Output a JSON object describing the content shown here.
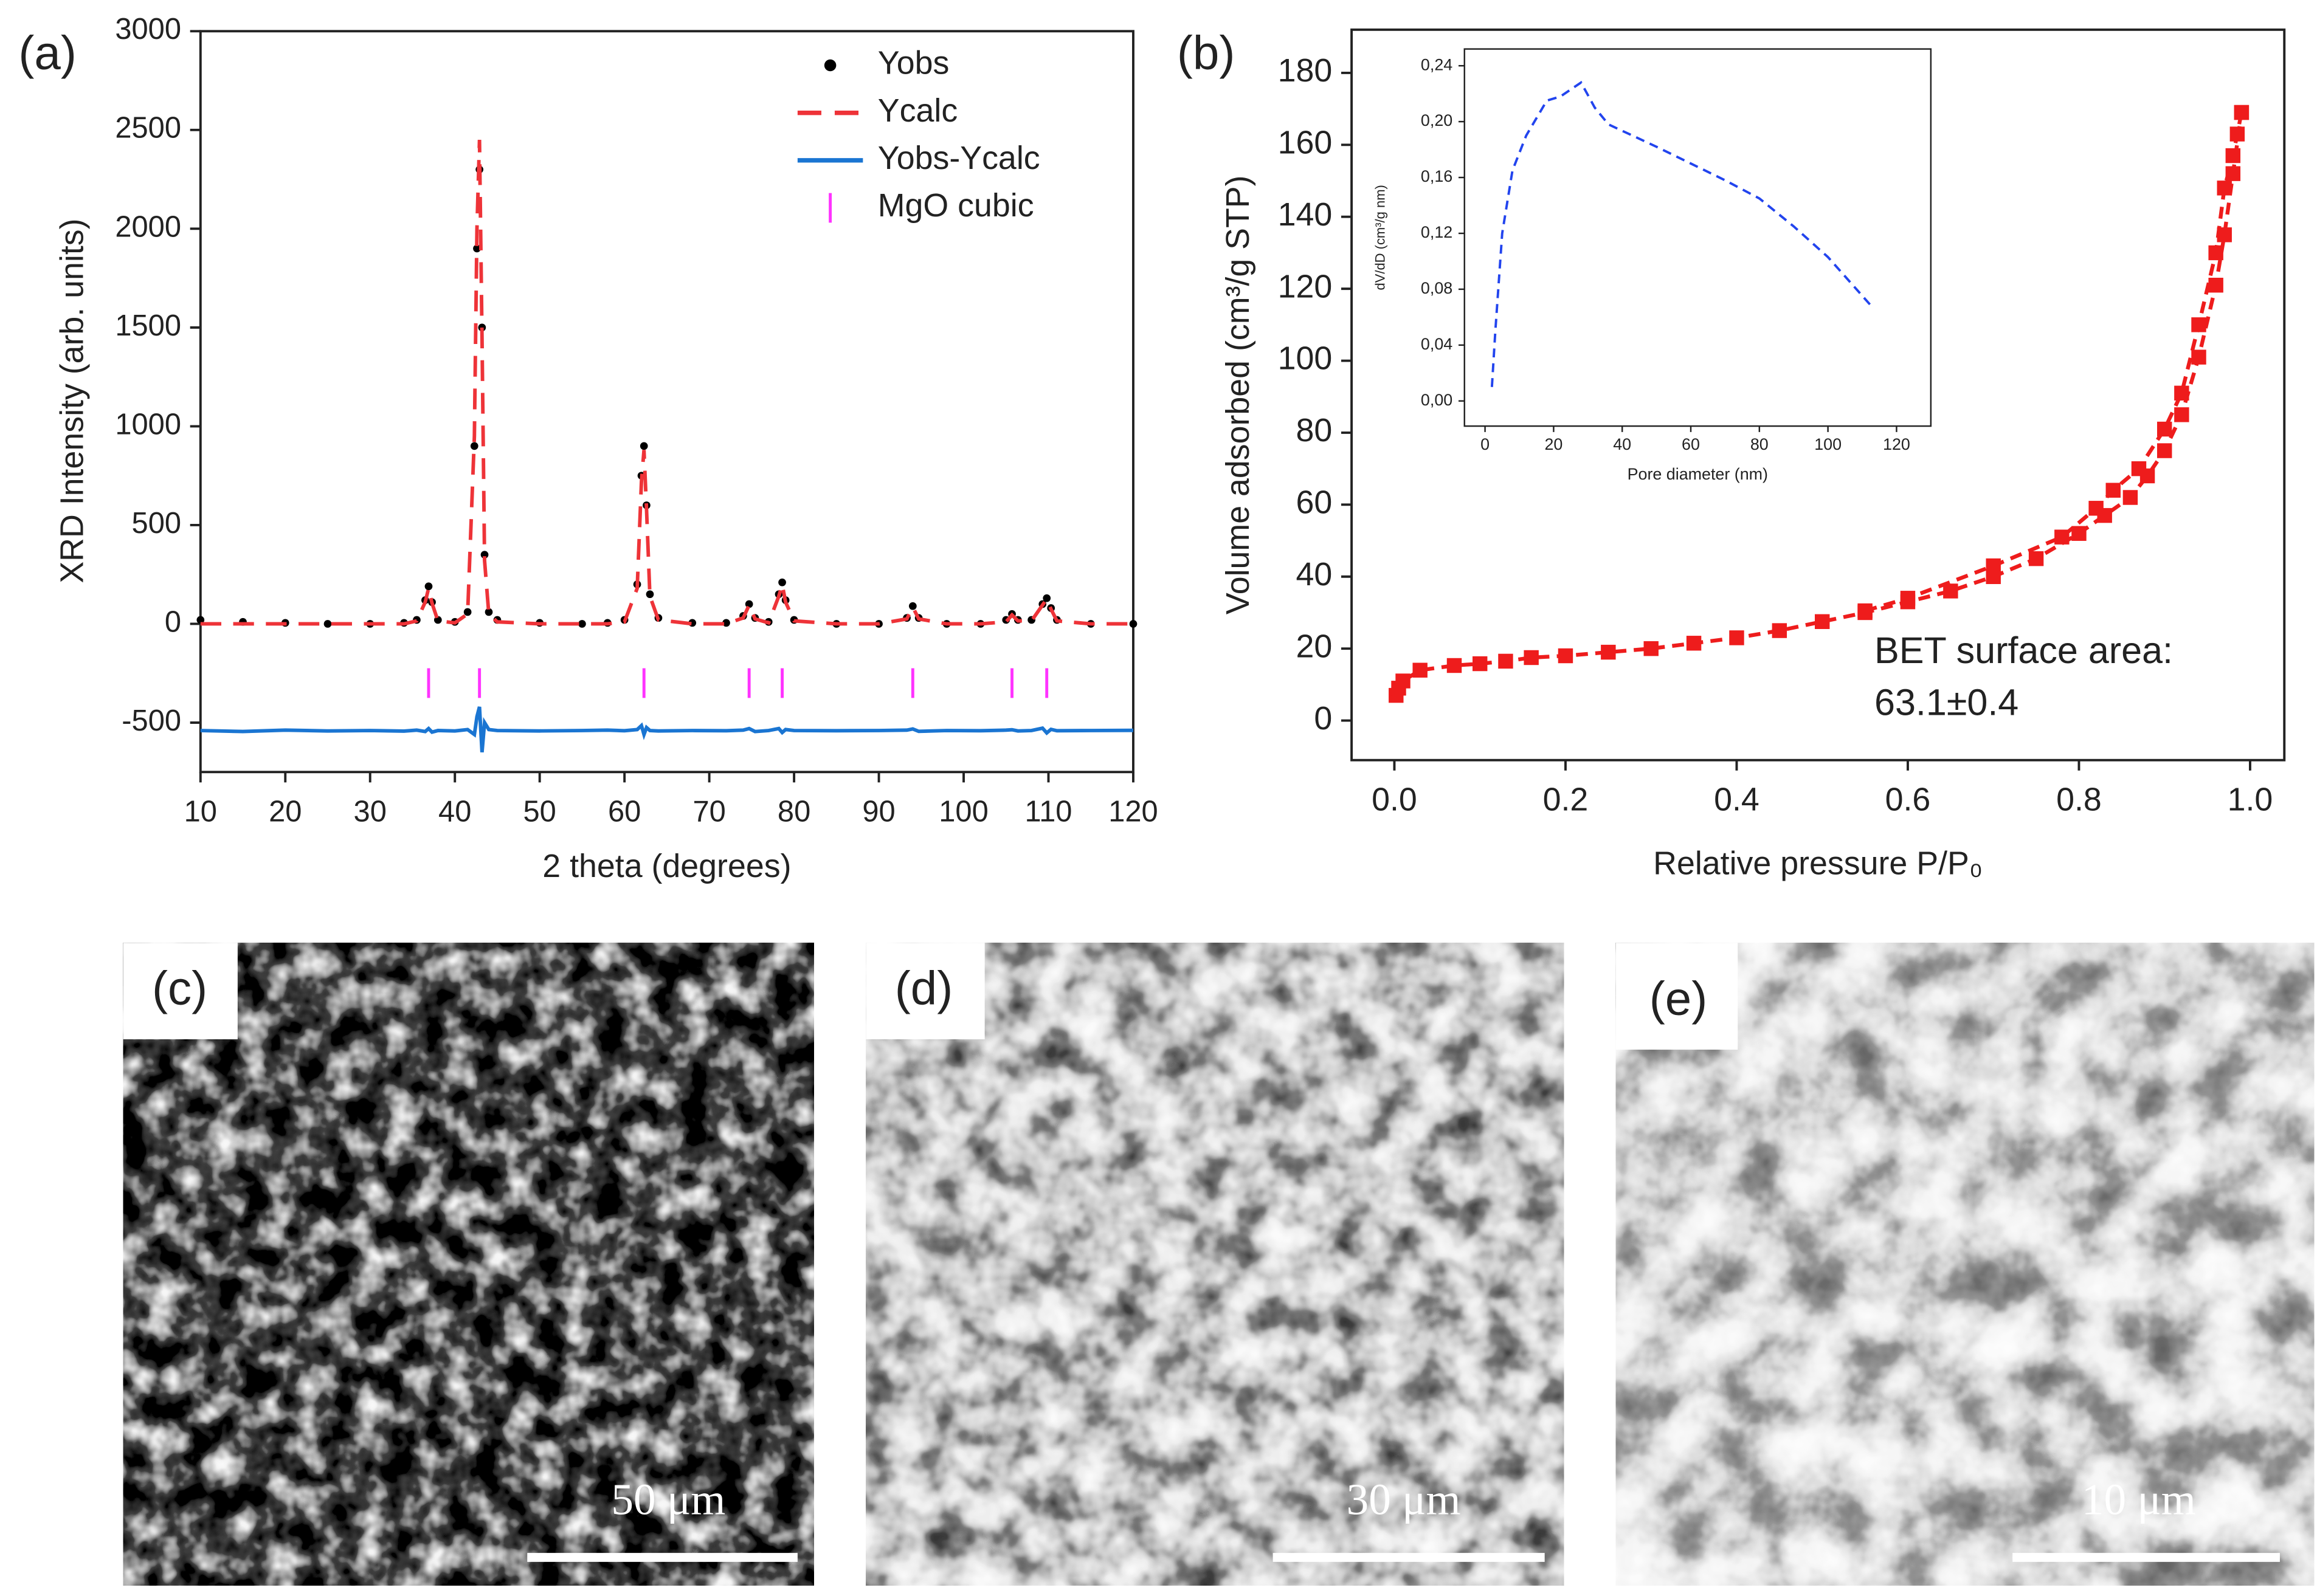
{
  "chart_data": [
    {
      "type": "line",
      "panel_label": "(a)",
      "xlabel": "2 theta (degrees)",
      "ylabel": "XRD Intensity (arb. units)",
      "xlim": [
        10,
        120
      ],
      "xticks": [
        10,
        20,
        30,
        40,
        50,
        60,
        70,
        80,
        90,
        100,
        110,
        120
      ],
      "ylim": [
        -750,
        3000
      ],
      "yticks": [
        -500,
        0,
        500,
        1000,
        1500,
        2000,
        2500,
        3000
      ],
      "legend": "upper right",
      "x": [
        10,
        15,
        20,
        25,
        30,
        34,
        35.5,
        36.5,
        36.9,
        37.3,
        38,
        40,
        41.5,
        42.3,
        42.6,
        42.9,
        43.2,
        43.5,
        44,
        45,
        50,
        55,
        58,
        60,
        61.5,
        62,
        62.3,
        62.6,
        63,
        64,
        68,
        72,
        74,
        74.7,
        75.4,
        77,
        78.2,
        78.6,
        79,
        80,
        85,
        90,
        93.3,
        94,
        94.7,
        98,
        102,
        105,
        105.7,
        106.4,
        108,
        109.3,
        109.8,
        110.3,
        111,
        115,
        120
      ],
      "series": [
        {
          "name": "Yobs",
          "color": "#000000",
          "style": "dots",
          "values": [
            20,
            10,
            5,
            0,
            0,
            5,
            20,
            120,
            190,
            110,
            20,
            10,
            60,
            900,
            1900,
            2300,
            1500,
            350,
            60,
            20,
            5,
            0,
            5,
            20,
            200,
            750,
            900,
            600,
            150,
            30,
            5,
            5,
            40,
            100,
            30,
            10,
            150,
            210,
            120,
            20,
            0,
            0,
            30,
            90,
            30,
            0,
            0,
            20,
            50,
            20,
            20,
            100,
            130,
            80,
            20,
            0,
            0
          ]
        },
        {
          "name": "Ycalc",
          "color": "#ee3338",
          "style": "dashed",
          "values": [
            0,
            0,
            0,
            0,
            0,
            0,
            15,
            110,
            180,
            105,
            15,
            5,
            50,
            950,
            2000,
            2450,
            1450,
            320,
            50,
            10,
            0,
            0,
            0,
            10,
            180,
            720,
            880,
            580,
            140,
            20,
            0,
            0,
            30,
            95,
            25,
            5,
            140,
            200,
            110,
            15,
            0,
            0,
            25,
            85,
            25,
            0,
            0,
            10,
            45,
            15,
            15,
            95,
            125,
            75,
            15,
            0,
            0
          ]
        },
        {
          "name": "Yobs-Ycalc",
          "color": "#1a75d2",
          "style": "solid",
          "values": [
            -540,
            -545,
            -538,
            -542,
            -540,
            -543,
            -538,
            -545,
            -530,
            -548,
            -540,
            -542,
            -535,
            -560,
            -470,
            -420,
            -650,
            -500,
            -535,
            -540,
            -542,
            -540,
            -538,
            -541,
            -535,
            -515,
            -560,
            -525,
            -540,
            -542,
            -540,
            -541,
            -538,
            -530,
            -545,
            -540,
            -530,
            -550,
            -535,
            -540,
            -541,
            -540,
            -538,
            -532,
            -544,
            -540,
            -541,
            -538,
            -536,
            -542,
            -540,
            -528,
            -552,
            -534,
            -541,
            -540,
            -539
          ]
        },
        {
          "name": "MgO cubic",
          "color": "#ff33ff",
          "style": "ticks",
          "x": [
            36.9,
            42.9,
            62.3,
            74.7,
            78.6,
            94.0,
            105.7,
            109.8
          ],
          "values": [
            -300,
            -300,
            -300,
            -300,
            -300,
            -300,
            -300,
            -300
          ]
        }
      ]
    },
    {
      "type": "line",
      "panel_label": "(b)",
      "xlabel": "Relative pressure P/P₀",
      "ylabel": "Volume adsorbed (cm³/g STP)",
      "xlim": [
        -0.05,
        1.04
      ],
      "xticks": [
        {
          "value": 0,
          "label": "0.0"
        },
        0.2,
        0.4,
        0.6,
        0.8,
        {
          "value": 1,
          "label": "1.0"
        }
      ],
      "ylim": [
        -11,
        192
      ],
      "yticks": [
        0,
        20,
        40,
        60,
        80,
        100,
        120,
        140,
        160,
        180
      ],
      "annotation": [
        "BET surface area:",
        "63.1±0.4"
      ],
      "series": [
        {
          "color": "#ee1c1c",
          "style": "line-squares",
          "x": [
            0.002,
            0.005,
            0.01,
            0.03,
            0.07,
            0.1,
            0.13,
            0.16,
            0.2,
            0.25,
            0.3,
            0.35,
            0.4,
            0.45,
            0.5,
            0.55,
            0.6,
            0.65,
            0.7,
            0.75,
            0.8,
            0.83,
            0.86,
            0.88,
            0.9,
            0.92,
            0.94,
            0.96,
            0.97,
            0.98,
            0.99
          ],
          "values": [
            7,
            9,
            11,
            14,
            15.3,
            15.8,
            16.5,
            17.5,
            18,
            19,
            20,
            21.5,
            23,
            25,
            27.5,
            30,
            33,
            36,
            40,
            45,
            52,
            57,
            62,
            68,
            75,
            85,
            101,
            121,
            135,
            152,
            169
          ]
        },
        {
          "color": "#ee1c1c",
          "style": "line-squares",
          "x": [
            0.99,
            0.985,
            0.98,
            0.97,
            0.96,
            0.94,
            0.92,
            0.9,
            0.87,
            0.84,
            0.82,
            0.78,
            0.7,
            0.6,
            0.55
          ],
          "values": [
            169,
            163,
            157,
            148,
            130,
            110,
            91,
            81,
            70,
            64,
            59,
            51,
            43,
            34,
            30.5
          ]
        }
      ]
    },
    {
      "type": "line",
      "inset": true,
      "xlabel": "Pore diameter (nm)",
      "ylabel": "dV/dD (cm³/g nm)",
      "xlim": [
        -6,
        130
      ],
      "xticks": [
        0,
        20,
        40,
        60,
        80,
        100,
        120
      ],
      "ylim": [
        -0.018,
        0.252
      ],
      "yticks": [
        {
          "value": 0,
          "label": "0,00"
        },
        {
          "value": 0.04,
          "label": "0,04"
        },
        {
          "value": 0.08,
          "label": "0,08"
        },
        {
          "value": 0.12,
          "label": "0,12"
        },
        {
          "value": 0.16,
          "label": "0,16"
        },
        {
          "value": 0.2,
          "label": "0,20"
        },
        {
          "value": 0.24,
          "label": "0,24"
        }
      ],
      "series": [
        {
          "color": "#2244ee",
          "style": "dashed",
          "x": [
            2,
            3,
            5,
            8,
            12,
            18,
            22,
            28,
            32,
            36,
            50,
            70,
            80,
            90,
            100,
            113
          ],
          "values": [
            0.01,
            0.05,
            0.12,
            0.165,
            0.19,
            0.215,
            0.218,
            0.228,
            0.21,
            0.198,
            0.182,
            0.158,
            0.145,
            0.125,
            0.103,
            0.067
          ]
        }
      ]
    }
  ],
  "images": [
    {
      "label": "(c)",
      "scale_bar": "50 μm"
    },
    {
      "label": "(d)",
      "scale_bar": "30 μm"
    },
    {
      "label": "(e)",
      "scale_bar": "10 μm"
    }
  ]
}
